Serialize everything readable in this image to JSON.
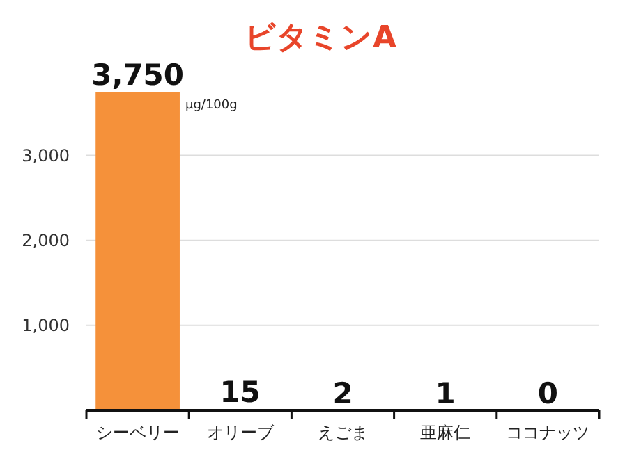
{
  "chart_data": {
    "type": "bar",
    "title": "ビタミンA",
    "categories": [
      "シーベリー",
      "オリーブ",
      "えごま",
      "亜麻仁",
      "ココナッツ"
    ],
    "values": [
      3750,
      15,
      2,
      1,
      0
    ],
    "color": "#f5913a",
    "ylim": [
      0,
      3750
    ],
    "yticks": [
      {
        "value": 1000,
        "label": "1,000"
      },
      {
        "value": 2000,
        "label": "2,000"
      },
      {
        "value": 3000,
        "label": "3,000"
      }
    ],
    "grid": "y",
    "value_labels": [
      "3,750",
      "15",
      "2",
      "1",
      "0"
    ],
    "annotations": [
      "μg/100g"
    ]
  }
}
